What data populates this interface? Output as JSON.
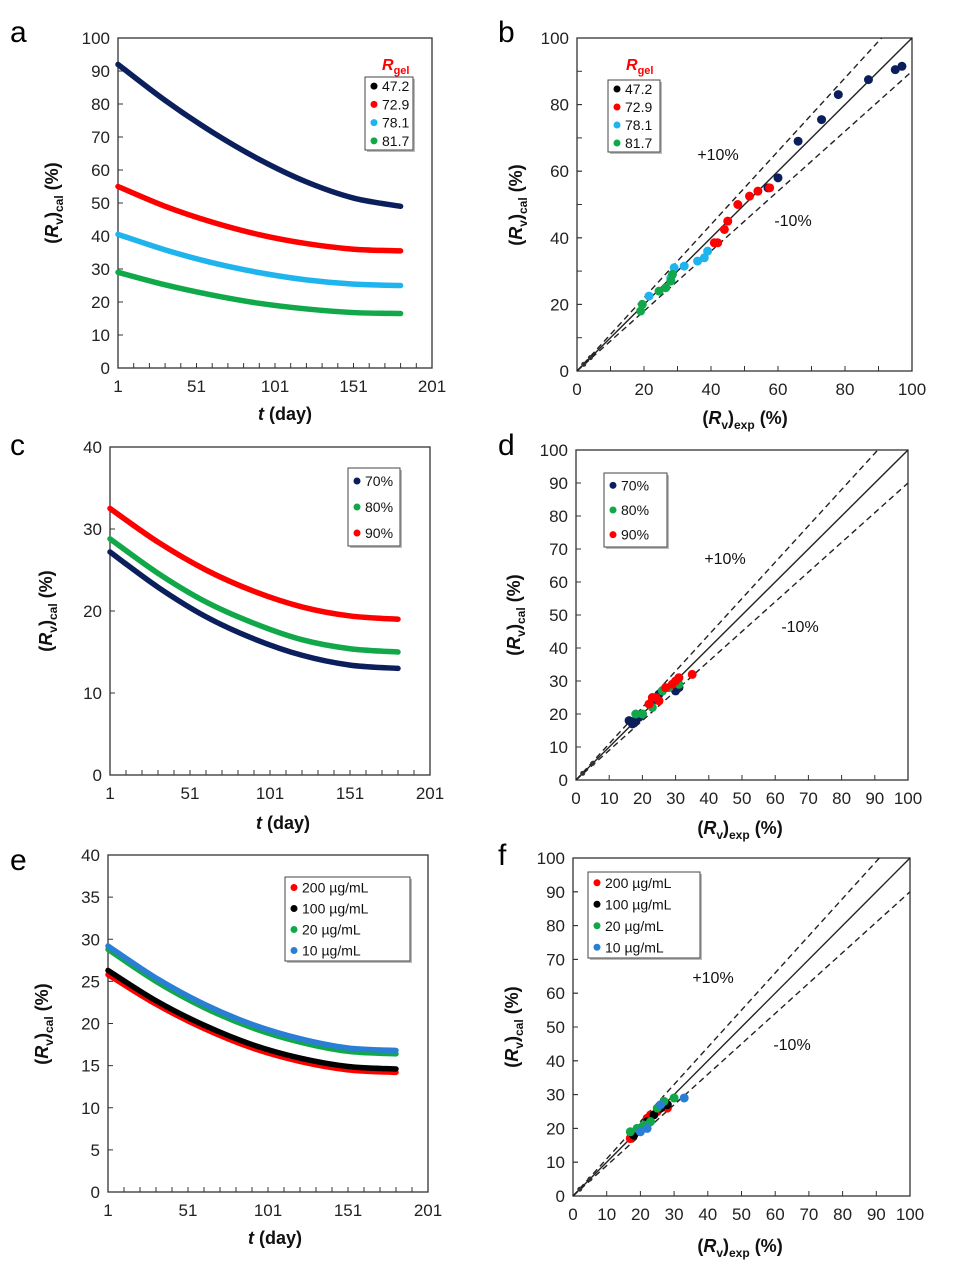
{
  "chart_data": [
    {
      "panel": "a",
      "type": "line",
      "xlabel_parts": [
        "t",
        " (day)"
      ],
      "ylabel_parts": [
        "(",
        "R",
        "v",
        ")",
        "cal",
        " (%)"
      ],
      "xlim": [
        1,
        201
      ],
      "xticks": [
        1,
        51,
        101,
        151,
        201
      ],
      "ylim": [
        0,
        100
      ],
      "yticks": [
        0,
        10,
        20,
        30,
        40,
        50,
        60,
        70,
        80,
        90,
        100
      ],
      "legend_title_parts": [
        "R",
        "gel"
      ],
      "x": [
        1,
        31,
        61,
        91,
        121,
        151,
        181
      ],
      "series": [
        {
          "name": "47.2",
          "color": "#0b1f5c",
          "marker": "#000000",
          "values": [
            92,
            81.1,
            71.5,
            63.2,
            56.4,
            51.5,
            49
          ]
        },
        {
          "name": "72.9",
          "color": "#ff0000",
          "values": [
            55,
            49.0,
            44.2,
            40.4,
            37.7,
            36.0,
            35.5
          ]
        },
        {
          "name": "78.1",
          "color": "#1fb4ee",
          "values": [
            40.5,
            35.8,
            31.9,
            28.9,
            26.7,
            25.4,
            25
          ]
        },
        {
          "name": "81.7",
          "color": "#11a84a",
          "values": [
            29,
            25.2,
            22.1,
            19.6,
            17.9,
            16.8,
            16.5
          ]
        }
      ]
    },
    {
      "panel": "b",
      "type": "scatter",
      "xlabel_parts": [
        "(",
        "R",
        "v",
        ")",
        "exp",
        " (%)"
      ],
      "ylabel_parts": [
        "(",
        "R",
        "v",
        ")",
        "cal",
        " (%)"
      ],
      "xlim": [
        0,
        100
      ],
      "ylim": [
        0,
        100
      ],
      "ticks": [
        0,
        20,
        40,
        60,
        80,
        100
      ],
      "minor_step": 10,
      "legend_title_parts": [
        "R",
        "gel"
      ],
      "annotations": [
        "+10%",
        "-10%"
      ],
      "reference_lines": [
        {
          "slope": 1,
          "style": "solid"
        },
        {
          "slope": 1.1,
          "style": "dashed"
        },
        {
          "slope": 0.9,
          "style": "dashed"
        }
      ],
      "series": [
        {
          "name": "47.2",
          "color": "#0b1f5c",
          "marker": "#000000",
          "points": [
            [
              2,
              2
            ],
            [
              4,
              4
            ],
            [
              57,
              55
            ],
            [
              60,
              58
            ],
            [
              66,
              69
            ],
            [
              73,
              75.5
            ],
            [
              78,
              83
            ],
            [
              87,
              87.5
            ],
            [
              95,
              90.5
            ],
            [
              97,
              91.5
            ]
          ]
        },
        {
          "name": "72.9",
          "color": "#ff0000",
          "points": [
            [
              41,
              38.5
            ],
            [
              42,
              38.5
            ],
            [
              44,
              42.5
            ],
            [
              45,
              45
            ],
            [
              48,
              50
            ],
            [
              51.5,
              52.5
            ],
            [
              54,
              54
            ],
            [
              57.5,
              55
            ]
          ]
        },
        {
          "name": "78.1",
          "color": "#1fb4ee",
          "points": [
            [
              21.5,
              22.5
            ],
            [
              28,
              28
            ],
            [
              29,
              31
            ],
            [
              32,
              31.5
            ],
            [
              36,
              33
            ],
            [
              38,
              34
            ],
            [
              39,
              36
            ]
          ]
        },
        {
          "name": "81.7",
          "color": "#11a84a",
          "points": [
            [
              19,
              18
            ],
            [
              19.5,
              20
            ],
            [
              24.5,
              24
            ],
            [
              26.5,
              25
            ],
            [
              28,
              27
            ],
            [
              28.5,
              29
            ]
          ]
        }
      ]
    },
    {
      "panel": "c",
      "type": "line",
      "xlabel_parts": [
        "t",
        " (day)"
      ],
      "ylabel_parts": [
        "(",
        "R",
        "v",
        ")",
        "cal",
        " (%)"
      ],
      "xlim": [
        1,
        201
      ],
      "xticks": [
        1,
        51,
        101,
        151,
        201
      ],
      "ylim": [
        0,
        40
      ],
      "yticks": [
        0,
        10,
        20,
        30,
        40
      ],
      "x": [
        1,
        31,
        61,
        91,
        121,
        151,
        181
      ],
      "series": [
        {
          "name": "70%",
          "color": "#0b1f5c",
          "values": [
            27.2,
            22.9,
            19.3,
            16.6,
            14.6,
            13.4,
            13
          ]
        },
        {
          "name": "80%",
          "color": "#11a84a",
          "values": [
            28.8,
            24.6,
            21.1,
            18.5,
            16.5,
            15.4,
            15
          ]
        },
        {
          "name": "90%",
          "color": "#ff0000",
          "values": [
            32.5,
            28.4,
            25.0,
            22.4,
            20.5,
            19.4,
            19
          ]
        }
      ]
    },
    {
      "panel": "d",
      "type": "scatter",
      "xlabel_parts": [
        "(",
        "R",
        "v",
        ")",
        "exp",
        " (%)"
      ],
      "ylabel_parts": [
        "(",
        "R",
        "v",
        ")",
        "cal",
        " (%)"
      ],
      "xlim": [
        0,
        100
      ],
      "ylim": [
        0,
        100
      ],
      "ticks": [
        0,
        10,
        20,
        30,
        40,
        50,
        60,
        70,
        80,
        90,
        100
      ],
      "minor_step": 10,
      "annotations": [
        "+10%",
        "-10%"
      ],
      "reference_lines": [
        {
          "slope": 1,
          "style": "solid"
        },
        {
          "slope": 1.1,
          "style": "dashed"
        },
        {
          "slope": 0.9,
          "style": "dashed"
        }
      ],
      "series": [
        {
          "name": "70%",
          "color": "#0b1f5c",
          "points": [
            [
              2,
              2
            ],
            [
              5,
              5
            ],
            [
              16,
              18
            ],
            [
              17,
              17
            ],
            [
              18,
              18
            ],
            [
              19,
              19
            ],
            [
              20,
              20
            ],
            [
              23,
              24
            ],
            [
              25,
              26
            ],
            [
              26,
              27
            ],
            [
              30,
              27
            ],
            [
              31,
              28
            ]
          ]
        },
        {
          "name": "80%",
          "color": "#11a84a",
          "points": [
            [
              18,
              20
            ],
            [
              20,
              20
            ],
            [
              23,
              22
            ],
            [
              26,
              27
            ],
            [
              28,
              28
            ],
            [
              31,
              29
            ]
          ]
        },
        {
          "name": "90%",
          "color": "#ff0000",
          "points": [
            [
              22,
              23
            ],
            [
              23,
              25
            ],
            [
              24,
              25
            ],
            [
              25,
              24
            ],
            [
              27,
              28
            ],
            [
              29,
              29
            ],
            [
              30,
              30
            ],
            [
              31,
              31
            ],
            [
              35,
              32
            ]
          ]
        }
      ]
    },
    {
      "panel": "e",
      "type": "line",
      "xlabel_parts": [
        "t",
        " (day)"
      ],
      "ylabel_parts": [
        "(",
        "R",
        "v",
        ")",
        "cal",
        " (%)"
      ],
      "xlim": [
        1,
        201
      ],
      "xticks": [
        1,
        51,
        101,
        151,
        201
      ],
      "ylim": [
        0,
        40
      ],
      "yticks": [
        0,
        5,
        10,
        15,
        20,
        25,
        30,
        35,
        40
      ],
      "x": [
        1,
        31,
        61,
        91,
        121,
        151,
        181
      ],
      "series": [
        {
          "name": "200 µg/mL",
          "color": "#ff0000",
          "values": [
            25.8,
            22.3,
            19.4,
            17.1,
            15.5,
            14.5,
            14.2
          ]
        },
        {
          "name": "100 µg/mL",
          "color": "#000000",
          "values": [
            26.3,
            22.7,
            19.8,
            17.5,
            15.9,
            14.9,
            14.6
          ]
        },
        {
          "name": "20 µg/mL",
          "color": "#11a84a",
          "values": [
            28.8,
            25.0,
            21.9,
            19.5,
            17.8,
            16.7,
            16.4
          ]
        },
        {
          "name": "10 µg/mL",
          "color": "#2a7fd4",
          "values": [
            29.2,
            25.4,
            22.3,
            19.9,
            18.2,
            17.1,
            16.8
          ]
        }
      ]
    },
    {
      "panel": "f",
      "type": "scatter",
      "xlabel_parts": [
        "(",
        "R",
        "v",
        ")",
        "exp",
        " (%)"
      ],
      "ylabel_parts": [
        "(",
        "R",
        "v",
        ")",
        "cal",
        " (%)"
      ],
      "xlim": [
        0,
        100
      ],
      "ylim": [
        0,
        100
      ],
      "ticks": [
        0,
        10,
        20,
        30,
        40,
        50,
        60,
        70,
        80,
        90,
        100
      ],
      "minor_step": 10,
      "annotations": [
        "+10%",
        "-10%"
      ],
      "reference_lines": [
        {
          "slope": 1,
          "style": "solid"
        },
        {
          "slope": 1.1,
          "style": "dashed"
        },
        {
          "slope": 0.9,
          "style": "dashed"
        }
      ],
      "series": [
        {
          "name": "200 µg/mL",
          "color": "#ff0000",
          "points": [
            [
              17,
              17
            ],
            [
              18,
              18
            ],
            [
              19,
              19
            ],
            [
              21,
              21
            ],
            [
              22,
              23
            ],
            [
              23,
              24
            ],
            [
              25,
              25
            ],
            [
              28,
              26
            ]
          ]
        },
        {
          "name": "100 µg/mL",
          "color": "#000000",
          "points": [
            [
              2,
              2
            ],
            [
              5,
              5
            ],
            [
              18,
              18
            ],
            [
              20,
              20
            ],
            [
              22,
              22
            ],
            [
              24,
              24
            ],
            [
              26,
              26
            ],
            [
              28,
              27
            ]
          ]
        },
        {
          "name": "20 µg/mL",
          "color": "#11a84a",
          "points": [
            [
              17,
              19
            ],
            [
              19,
              20
            ],
            [
              21,
              21
            ],
            [
              23,
              22
            ],
            [
              25,
              26
            ],
            [
              27,
              28
            ],
            [
              30,
              29
            ]
          ]
        },
        {
          "name": "10 µg/mL",
          "color": "#2a7fd4",
          "points": [
            [
              20,
              19
            ],
            [
              22,
              20
            ],
            [
              26,
              27
            ],
            [
              33,
              29
            ]
          ]
        }
      ]
    }
  ]
}
